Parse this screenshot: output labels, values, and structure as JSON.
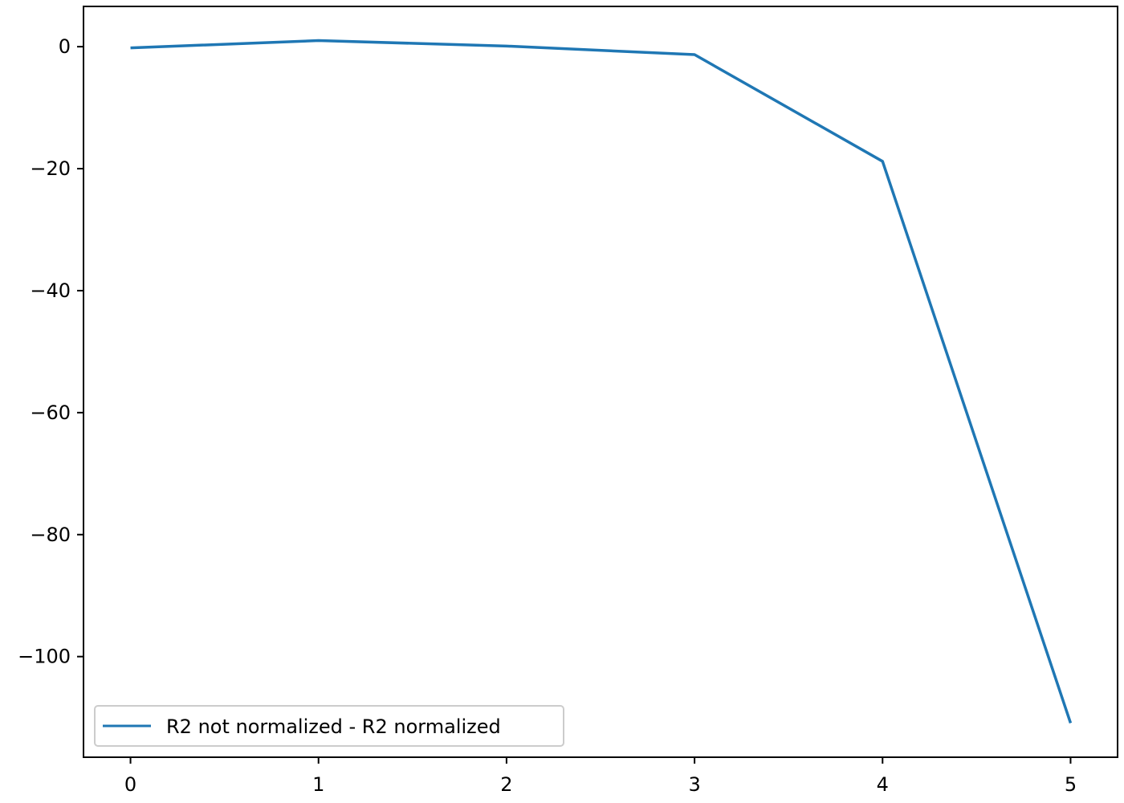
{
  "chart_data": {
    "type": "line",
    "title": "",
    "xlabel": "",
    "ylabel": "",
    "xlim": [
      -0.25,
      5.25
    ],
    "ylim": [
      -116.5,
      6.6
    ],
    "x_ticks": [
      0,
      1,
      2,
      3,
      4,
      5
    ],
    "x_tick_labels": [
      "0",
      "1",
      "2",
      "3",
      "4",
      "5"
    ],
    "y_ticks": [
      0,
      -20,
      -40,
      -60,
      -80,
      -100
    ],
    "y_tick_labels": [
      "0",
      "−20",
      "−40",
      "−60",
      "−80",
      "−100"
    ],
    "grid": false,
    "legend_position": "lower-left",
    "series": [
      {
        "name": "R2 not normalized - R2 normalized",
        "color": "#1f77b4",
        "x": [
          0,
          1,
          2,
          3,
          4,
          5
        ],
        "values": [
          -0.2,
          1.0,
          0.1,
          -1.3,
          -18.8,
          -110.9
        ]
      }
    ]
  }
}
